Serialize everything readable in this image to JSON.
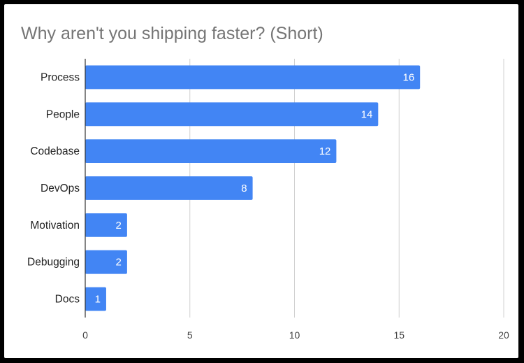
{
  "chart_data": {
    "type": "bar",
    "orientation": "horizontal",
    "title": "Why aren't you shipping faster? (Short)",
    "categories": [
      "Process",
      "People",
      "Codebase",
      "DevOps",
      "Motivation",
      "Debugging",
      "Docs"
    ],
    "values": [
      16,
      14,
      12,
      8,
      2,
      2,
      1
    ],
    "xlabel": "",
    "ylabel": "",
    "xlim": [
      0,
      20
    ],
    "xticks": [
      0,
      5,
      10,
      15,
      20
    ],
    "grid": true,
    "legend": "none",
    "bar_color": "#4285f4",
    "data_labels": true
  }
}
